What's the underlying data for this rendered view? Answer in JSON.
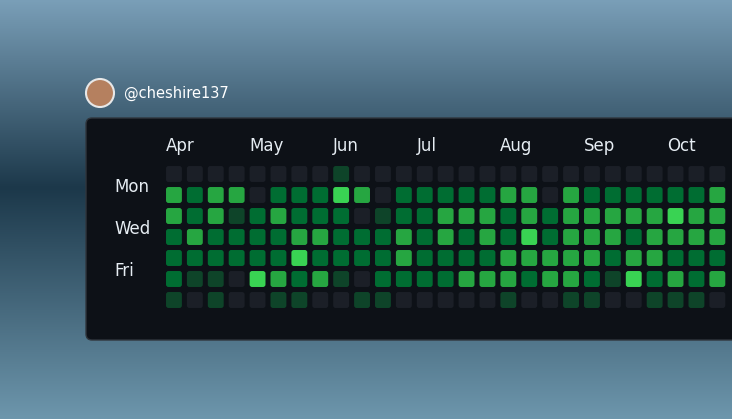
{
  "chart_data": {
    "type": "heatmap",
    "user": "@cheshire137",
    "categories": [
      "Apr",
      null,
      null,
      null,
      "May",
      null,
      null,
      null,
      "Jun",
      null,
      null,
      null,
      "Jul",
      null,
      null,
      null,
      "Aug",
      null,
      null,
      null,
      "Sep",
      null,
      null,
      null,
      "Oct",
      null,
      null
    ],
    "rows": [
      null,
      "Mon",
      null,
      "Wed",
      null,
      "Fri",
      null
    ],
    "levels": [
      0,
      1,
      2,
      3,
      4
    ],
    "colors": [
      "#1b1f27",
      "#0e4429",
      "#006d32",
      "#26a641",
      "#39d353"
    ],
    "values": [
      [
        0,
        0,
        0,
        0,
        0,
        0,
        0,
        0,
        1,
        0,
        0,
        0,
        0,
        0,
        0,
        0,
        0,
        0,
        0,
        0,
        0,
        0,
        0,
        0,
        0,
        0,
        0
      ],
      [
        3,
        2,
        3,
        3,
        0,
        2,
        2,
        2,
        4,
        3,
        0,
        2,
        2,
        2,
        2,
        2,
        3,
        3,
        0,
        3,
        2,
        2,
        2,
        2,
        2,
        2,
        3
      ],
      [
        3,
        2,
        3,
        1,
        2,
        3,
        2,
        2,
        2,
        0,
        1,
        2,
        2,
        3,
        3,
        3,
        2,
        3,
        2,
        3,
        3,
        3,
        3,
        3,
        4,
        3,
        3
      ],
      [
        2,
        3,
        2,
        2,
        2,
        2,
        3,
        3,
        2,
        2,
        2,
        3,
        2,
        3,
        2,
        3,
        2,
        4,
        2,
        3,
        3,
        3,
        2,
        3,
        3,
        3,
        3
      ],
      [
        2,
        2,
        2,
        2,
        2,
        2,
        4,
        2,
        2,
        2,
        2,
        3,
        2,
        2,
        2,
        2,
        3,
        3,
        3,
        3,
        3,
        2,
        3,
        3,
        2,
        2,
        2
      ],
      [
        2,
        1,
        1,
        0,
        4,
        3,
        2,
        3,
        1,
        0,
        2,
        2,
        2,
        2,
        3,
        3,
        3,
        2,
        3,
        3,
        2,
        1,
        4,
        2,
        3,
        2,
        3
      ],
      [
        1,
        0,
        1,
        0,
        0,
        1,
        1,
        0,
        0,
        1,
        1,
        0,
        0,
        0,
        0,
        0,
        1,
        0,
        0,
        1,
        1,
        0,
        0,
        1,
        1,
        1,
        0
      ]
    ]
  }
}
